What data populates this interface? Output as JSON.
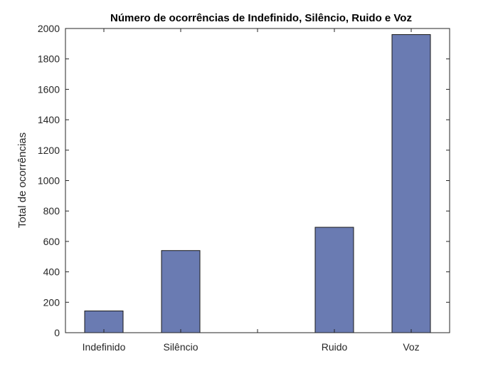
{
  "chart_data": {
    "type": "bar",
    "title": "Número de ocorrências de Indefinido, Silêncio, Ruido e Voz",
    "xlabel": "",
    "ylabel": "Total de ocorrências",
    "x_positions": [
      1,
      2,
      3,
      4,
      5
    ],
    "categories": [
      "Indefinido",
      "Silêncio",
      "",
      "Ruido",
      "Voz"
    ],
    "values": [
      143,
      540,
      0,
      693,
      1960
    ],
    "xlim": [
      0.5,
      5.5
    ],
    "ylim": [
      0,
      2000
    ],
    "yticks": [
      0,
      200,
      400,
      600,
      800,
      1000,
      1200,
      1400,
      1600,
      1800,
      2000
    ],
    "ytick_labels": [
      "0",
      "200",
      "400",
      "600",
      "800",
      "1000",
      "1200",
      "1400",
      "1600",
      "1800",
      "2000"
    ],
    "grid": false,
    "bar_color": "#6a7bb2",
    "edge_color": "#1a1a1a"
  }
}
